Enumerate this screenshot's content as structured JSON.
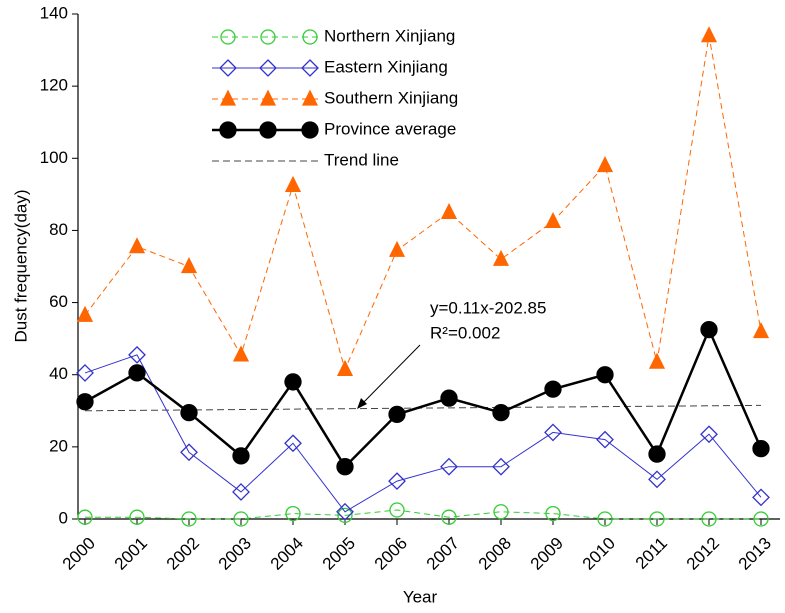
{
  "chart_data": {
    "type": "line",
    "x_label": "Year",
    "y_label": "Dust frequency(day)",
    "categories": [
      "2000",
      "2001",
      "2002",
      "2003",
      "2004",
      "2005",
      "2006",
      "2007",
      "2008",
      "2009",
      "2010",
      "2011",
      "2012",
      "2013"
    ],
    "ylim": [
      0,
      140
    ],
    "yticks": [
      0,
      20,
      40,
      60,
      80,
      100,
      120,
      140
    ],
    "series": [
      {
        "name": "Northern Xinjiang",
        "color": "#33cc33",
        "marker": "circle",
        "filled": false,
        "dash": true,
        "values": [
          0.5,
          0.5,
          0,
          0,
          1.5,
          1,
          2.5,
          0.5,
          2,
          1.5,
          0,
          0,
          0,
          0
        ]
      },
      {
        "name": "Eastern Xinjiang",
        "color": "#3333cc",
        "marker": "diamond",
        "filled": false,
        "dash": false,
        "values": [
          40.5,
          45.5,
          18.5,
          7.5,
          21,
          2,
          10.5,
          14.5,
          14.5,
          24,
          22,
          11,
          23.5,
          6
        ]
      },
      {
        "name": "Southern Xinjiang",
        "color": "#ff6600",
        "marker": "triangle",
        "filled": true,
        "dash": true,
        "values": [
          56.5,
          75.5,
          70,
          45.5,
          92.5,
          41.5,
          74.5,
          85,
          72,
          82.5,
          98,
          43.5,
          134,
          52
        ]
      },
      {
        "name": "Province average",
        "color": "#000000",
        "marker": "circle",
        "filled": true,
        "dash": false,
        "values": [
          32.5,
          40.5,
          29.5,
          17.5,
          38,
          14.5,
          29,
          33.5,
          29.5,
          36,
          40,
          18,
          52.5,
          19.5
        ]
      }
    ],
    "trend_line": {
      "name": "Trend line",
      "color": "#444444",
      "values": [
        30,
        31.5
      ]
    },
    "annotations": [
      "y=0.11x-202.85",
      "R²=0.002"
    ]
  }
}
